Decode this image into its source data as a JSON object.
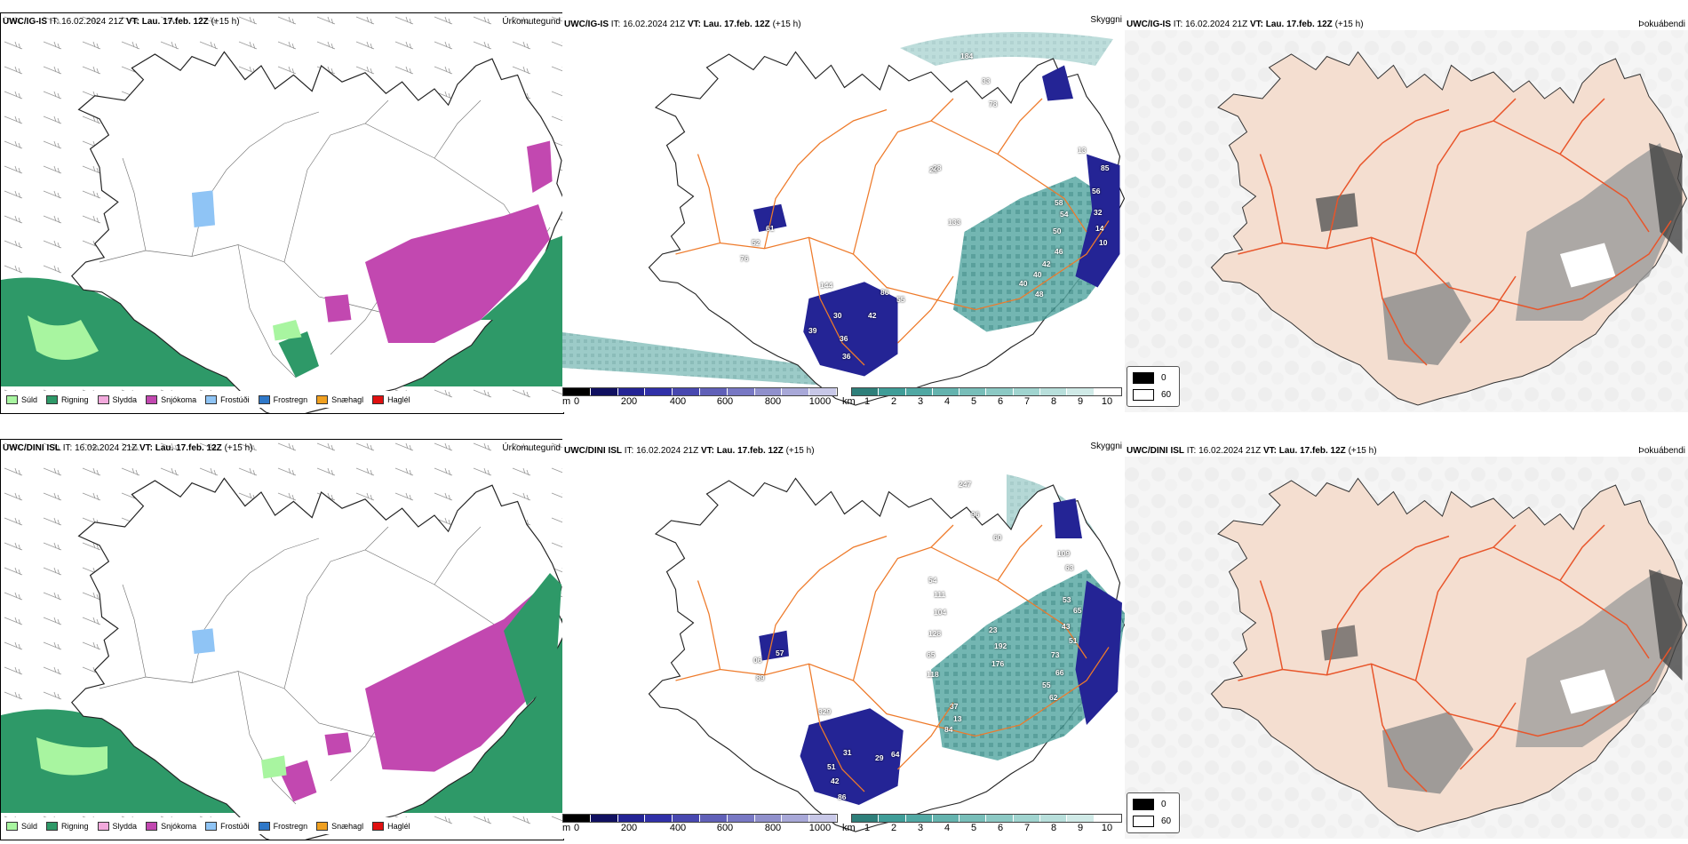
{
  "colors": {
    "precip_legend": [
      "#a8f5a0",
      "#2e9968",
      "#f2a9dc",
      "#c248b0",
      "#8fc4f5",
      "#2f78c8",
      "#f0a020",
      "#e01010"
    ],
    "land": "#f4ded0",
    "roads": "#ee7a2a",
    "ceiling_blue": "#242495",
    "visibility_teal": "#3f9d98"
  },
  "rows": [
    {
      "model": "UWC/IG-IS",
      "it_label": "IT:",
      "it_value": "16.02.2024 21Z",
      "vt_label": "VT:",
      "vt_value": "Lau. 17.feb. 12Z",
      "lead": "(+15 h)",
      "precip_title": "Úrkomutegund",
      "ceiling_title": "Skyggni",
      "fog_title": "Þokuábendi",
      "ceiling_numbers": [
        "184",
        "33",
        "78",
        "61",
        "52",
        "76",
        "144",
        "30",
        "39",
        "36",
        "36",
        "42",
        "86",
        "55",
        "21",
        "28",
        "133",
        "58",
        "54",
        "50",
        "46",
        "42",
        "40",
        "40",
        "48",
        "13",
        "56",
        "32",
        "14",
        "10",
        "85"
      ]
    },
    {
      "model": "UWC/DINI ISL",
      "it_label": "IT:",
      "it_value": "16.02.2024 21Z",
      "vt_label": "VT:",
      "vt_value": "Lau. 17.feb. 12Z",
      "lead": "(+15 h)",
      "precip_title": "Úrkomutegund",
      "ceiling_title": "Skyggni",
      "fog_title": "Þokuábendi",
      "ceiling_numbers": [
        "247",
        "96",
        "60",
        "57",
        "89",
        "06",
        "329",
        "31",
        "51",
        "42",
        "86",
        "29",
        "64",
        "54",
        "111",
        "104",
        "128",
        "65",
        "118",
        "37",
        "84",
        "13",
        "23",
        "192",
        "176",
        "109",
        "63",
        "53",
        "65",
        "43",
        "51",
        "73",
        "66",
        "55",
        "62"
      ]
    }
  ],
  "precip_legend": [
    "Súld",
    "Rigning",
    "Slydda",
    "Snjókoma",
    "Frostúði",
    "Frostregn",
    "Snæhagl",
    "Haglél"
  ],
  "ceiling_bar": {
    "unit": "m",
    "ticks": [
      "0",
      "200",
      "400",
      "600",
      "800",
      "1000"
    ]
  },
  "visibility_bar": {
    "unit": "km",
    "ticks": [
      "1",
      "2",
      "3",
      "4",
      "5",
      "6",
      "7",
      "8",
      "9",
      "10"
    ]
  },
  "fog_legend": [
    "0",
    "60"
  ]
}
